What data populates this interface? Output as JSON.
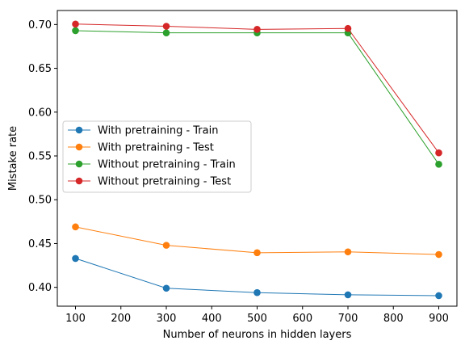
{
  "chart_data": {
    "type": "line",
    "xlabel": "Number of neurons in hidden layers",
    "ylabel": "Mistake rate",
    "x": [
      100,
      300,
      500,
      700,
      900
    ],
    "xlim": [
      60,
      940
    ],
    "ylim": [
      0.3785,
      0.716
    ],
    "xticks": [
      100,
      200,
      300,
      400,
      500,
      600,
      700,
      800,
      900
    ],
    "yticks": [
      0.4,
      0.45,
      0.5,
      0.55,
      0.6,
      0.65,
      0.7
    ],
    "ytick_labels": [
      "0.40",
      "0.45",
      "0.50",
      "0.55",
      "0.60",
      "0.65",
      "0.70"
    ],
    "grid": false,
    "legend_position": "center-left",
    "series": [
      {
        "name": "With pretraining - Train",
        "color": "#1f77b4",
        "values": [
          0.433,
          0.399,
          0.394,
          0.3915,
          0.3905
        ]
      },
      {
        "name": "With pretraining - Test",
        "color": "#ff7f0e",
        "values": [
          0.469,
          0.448,
          0.4395,
          0.4405,
          0.4375
        ]
      },
      {
        "name": "Without pretraining - Train",
        "color": "#2ca02c",
        "values": [
          0.693,
          0.6905,
          0.6905,
          0.6905,
          0.5405
        ]
      },
      {
        "name": "Without pretraining - Test",
        "color": "#d62728",
        "values": [
          0.7005,
          0.698,
          0.6945,
          0.6955,
          0.5535
        ]
      }
    ]
  }
}
